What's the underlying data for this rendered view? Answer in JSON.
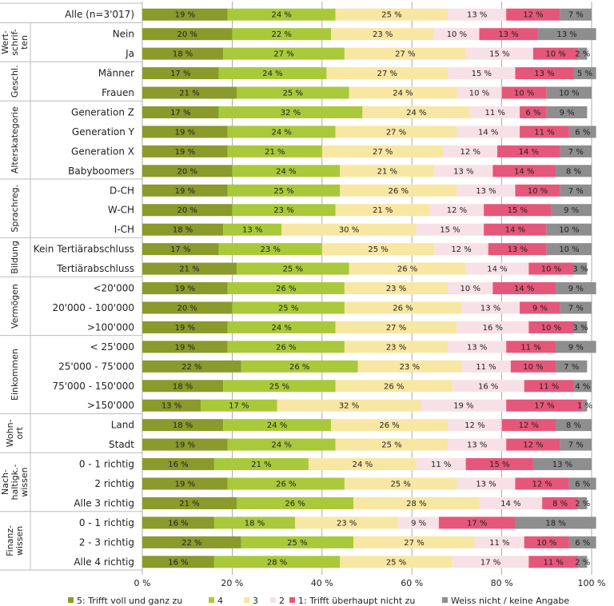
{
  "chart_data": {
    "type": "stacked-horizontal-bar",
    "title": "",
    "xlabel": "",
    "ylabel": "",
    "xlim": [
      0,
      100
    ],
    "x_ticks": [
      "0 %",
      "20 %",
      "40 %",
      "60 %",
      "80 %",
      "100 %"
    ],
    "legend_position": "bottom",
    "series": [
      {
        "name": "5: Trifft voll und ganz zu",
        "color": "#8a9a2b"
      },
      {
        "name": "4",
        "color": "#a9c93a"
      },
      {
        "name": "3",
        "color": "#f8e6a3"
      },
      {
        "name": "2",
        "color": "#f7e1e6"
      },
      {
        "name": "1: Trifft überhaupt nicht zu",
        "color": "#e5577a"
      },
      {
        "name": "Weiss nicht / keine Angabe",
        "color": "#8e8e8e"
      }
    ],
    "groups": [
      {
        "label": "",
        "rows": [
          {
            "label": "Alle (n=3'017)",
            "values": [
              19,
              24,
              25,
              13,
              12,
              7
            ]
          }
        ]
      },
      {
        "label": "Wert-\nschrif-\nten",
        "rows": [
          {
            "label": "Nein",
            "values": [
              20,
              22,
              23,
              10,
              13,
              13
            ]
          },
          {
            "label": "Ja",
            "values": [
              18,
              27,
              27,
              15,
              10,
              2
            ]
          }
        ]
      },
      {
        "label": "Geschl.",
        "rows": [
          {
            "label": "Männer",
            "values": [
              17,
              24,
              27,
              15,
              13,
              5
            ]
          },
          {
            "label": "Frauen",
            "values": [
              21,
              25,
              24,
              10,
              10,
              10
            ]
          }
        ]
      },
      {
        "label": "Alterskategorie",
        "rows": [
          {
            "label": "Generation Z",
            "values": [
              17,
              32,
              24,
              11,
              6,
              9
            ]
          },
          {
            "label": "Generation Y",
            "values": [
              19,
              24,
              27,
              14,
              11,
              6
            ]
          },
          {
            "label": "Generation X",
            "values": [
              19,
              21,
              27,
              12,
              14,
              7
            ]
          },
          {
            "label": "Babyboomers",
            "values": [
              20,
              24,
              21,
              13,
              14,
              8
            ]
          }
        ]
      },
      {
        "label": "Sprachreg.",
        "rows": [
          {
            "label": "D-CH",
            "values": [
              19,
              25,
              26,
              13,
              10,
              7
            ]
          },
          {
            "label": "W-CH",
            "values": [
              20,
              23,
              21,
              12,
              15,
              9
            ]
          },
          {
            "label": "I-CH",
            "values": [
              18,
              13,
              30,
              15,
              14,
              10
            ]
          }
        ]
      },
      {
        "label": "Bildung",
        "rows": [
          {
            "label": "Kein Tertiärabschluss",
            "values": [
              17,
              23,
              25,
              12,
              13,
              10
            ]
          },
          {
            "label": "Tertiärabschluss",
            "values": [
              21,
              25,
              26,
              14,
              10,
              3
            ]
          }
        ]
      },
      {
        "label": "Vermögen",
        "rows": [
          {
            "label": "<20'000",
            "values": [
              19,
              26,
              23,
              10,
              14,
              9
            ]
          },
          {
            "label": "20'000 - 100'000",
            "values": [
              20,
              25,
              26,
              13,
              9,
              7
            ]
          },
          {
            "label": ">100'000",
            "values": [
              19,
              24,
              27,
              16,
              10,
              3
            ]
          }
        ]
      },
      {
        "label": "Einkommen",
        "rows": [
          {
            "label": "< 25'000",
            "values": [
              19,
              26,
              23,
              13,
              11,
              9
            ]
          },
          {
            "label": "25'000 - 75'000",
            "values": [
              22,
              26,
              23,
              11,
              10,
              7
            ]
          },
          {
            "label": "75'000 - 150'000",
            "values": [
              18,
              25,
              26,
              16,
              11,
              4
            ]
          },
          {
            "label": ">150'000",
            "values": [
              13,
              17,
              32,
              19,
              17,
              1
            ]
          }
        ]
      },
      {
        "label": "Wohn-\nort",
        "rows": [
          {
            "label": "Land",
            "values": [
              18,
              24,
              26,
              12,
              12,
              8
            ]
          },
          {
            "label": "Stadt",
            "values": [
              19,
              24,
              25,
              13,
              12,
              7
            ]
          }
        ]
      },
      {
        "label": "Nach-\nhaltigk.-\nwissen",
        "rows": [
          {
            "label": "0 - 1 richtig",
            "values": [
              16,
              21,
              24,
              11,
              15,
              13
            ]
          },
          {
            "label": "2 richtig",
            "values": [
              19,
              26,
              25,
              13,
              12,
              6
            ]
          },
          {
            "label": "Alle 3 richtig",
            "values": [
              21,
              26,
              28,
              14,
              8,
              2
            ]
          }
        ]
      },
      {
        "label": "Finanz-\nwissen",
        "rows": [
          {
            "label": "0 - 1 richtig",
            "values": [
              16,
              18,
              23,
              9,
              17,
              18
            ]
          },
          {
            "label": "2 - 3 richtig",
            "values": [
              22,
              25,
              27,
              11,
              10,
              6
            ]
          },
          {
            "label": "Alle 4 richtig",
            "values": [
              16,
              28,
              25,
              17,
              11,
              2
            ]
          }
        ]
      }
    ]
  }
}
